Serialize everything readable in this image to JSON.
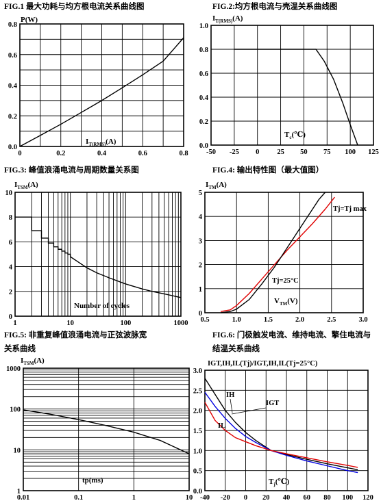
{
  "chart_data": [
    {
      "id": "fig1",
      "type": "line",
      "title": "FIG.1  最大功耗与均方根电流关系曲线图",
      "ylabel": "P(W)",
      "xlabel_main": "I",
      "xlabel_sub": "T(RMS)",
      "xlabel_tail": "(A)",
      "xlim": [
        0,
        0.8
      ],
      "ylim": [
        0,
        0.8
      ],
      "xticks": [
        0,
        0.2,
        0.4,
        0.6,
        0.8
      ],
      "xtick_labels": [
        "0",
        "0.2",
        "0.4",
        "0.6",
        "0.8"
      ],
      "yticks": [
        0,
        0.2,
        0.4,
        0.6,
        0.8
      ],
      "ytick_labels": [
        "0.0",
        "0.2",
        "0.4",
        "0.6",
        "0.8"
      ],
      "xgrid": [
        0.1,
        0.2,
        0.3,
        0.4,
        0.5,
        0.6,
        0.7
      ],
      "ygrid": [
        0.1,
        0.2,
        0.3,
        0.4,
        0.5,
        0.6,
        0.7
      ],
      "series": [
        {
          "color": "#000000",
          "x": [
            0,
            0.1,
            0.2,
            0.3,
            0.4,
            0.5,
            0.6,
            0.7,
            0.8
          ],
          "y": [
            0,
            0.072,
            0.145,
            0.222,
            0.3,
            0.383,
            0.468,
            0.557,
            0.71
          ]
        }
      ]
    },
    {
      "id": "fig2",
      "type": "line",
      "title": "FIG.2:均方根电流与壳温关系曲线图",
      "ylabel_main": "I",
      "ylabel_sub": "T(RMS)",
      "ylabel_tail": "(A)",
      "xlabel_main": "T",
      "xlabel_sub": "c",
      "xlabel_tail": "(℃)",
      "xlim": [
        -50,
        125
      ],
      "ylim": [
        0,
        1.0
      ],
      "xticks": [
        -50,
        -25,
        0,
        25,
        50,
        75,
        100,
        125
      ],
      "xtick_labels": [
        "-50",
        "-25",
        "0",
        "25",
        "50",
        "75",
        "100",
        "125"
      ],
      "yticks": [
        0,
        0.2,
        0.4,
        0.6,
        0.8,
        1.0
      ],
      "ytick_labels": [
        "0.0",
        "0.2",
        "0.4",
        "0.6",
        "0.8",
        "1.0"
      ],
      "xgrid": [
        -25,
        0,
        25,
        50,
        75,
        100
      ],
      "ygrid": [
        0.2,
        0.4,
        0.6,
        0.8
      ],
      "series": [
        {
          "color": "#000000",
          "x": [
            -25,
            63,
            72,
            82,
            92,
            100,
            108
          ],
          "y": [
            0.8,
            0.8,
            0.7,
            0.55,
            0.35,
            0.17,
            0
          ]
        }
      ]
    },
    {
      "id": "fig3",
      "type": "line",
      "title": "FIG.3:  峰值浪涌电流与周期数量关系图",
      "ylabel_main": "I",
      "ylabel_sub": "TSM",
      "ylabel_tail": "(A)",
      "xlabel": "Number of cycles",
      "xscale": "log",
      "xlim": [
        1,
        1000
      ],
      "ylim": [
        0,
        10
      ],
      "xticks": [
        1,
        10,
        100,
        1000
      ],
      "xtick_labels": [
        "1",
        "10",
        "100",
        "1000"
      ],
      "yticks": [
        0,
        2,
        4,
        6,
        8,
        10
      ],
      "ytick_labels": [
        "0",
        "2",
        "4",
        "6",
        "8",
        "10"
      ],
      "xgrid": [
        2,
        3,
        4,
        5,
        6,
        7,
        8,
        9,
        10,
        20,
        30,
        40,
        50,
        60,
        70,
        80,
        90,
        100,
        200,
        300,
        400,
        500,
        600,
        700,
        800,
        900
      ],
      "ygrid": [
        2,
        4,
        6,
        8
      ],
      "series": [
        {
          "color": "#000000",
          "step": true,
          "x": [
            1,
            2,
            3,
            4,
            5,
            6,
            7,
            8,
            9,
            10
          ],
          "y": [
            8.0,
            6.9,
            6.3,
            5.9,
            5.6,
            5.4,
            5.25,
            5.1,
            5.0,
            4.8
          ]
        },
        {
          "color": "#000000",
          "step": false,
          "x": [
            10,
            20,
            30,
            50,
            100,
            200,
            300,
            500,
            1000
          ],
          "y": [
            4.8,
            3.9,
            3.5,
            3.1,
            2.6,
            2.2,
            2.0,
            1.8,
            1.5
          ]
        }
      ]
    },
    {
      "id": "fig4",
      "type": "line",
      "title": "FIG.4:  输出特性图（最大值图）",
      "ylabel_main": "I",
      "ylabel_sub": "TM",
      "ylabel_tail": "(A)",
      "xlabel_main": "V",
      "xlabel_sub": "TM",
      "xlabel_tail": "(V)",
      "xlim": [
        0.5,
        3.0
      ],
      "ylim": [
        0,
        5
      ],
      "xticks": [
        0.5,
        1.0,
        1.5,
        2.0,
        2.5,
        3.0
      ],
      "xtick_labels": [
        "0.5",
        "1.0",
        "1.5",
        "2.0",
        "2.5",
        "3.0"
      ],
      "yticks": [
        0,
        1,
        2,
        3,
        4,
        5
      ],
      "ytick_labels": [
        "0",
        "1",
        "2",
        "3",
        "4",
        "5"
      ],
      "xgrid": [
        1.0,
        1.5,
        2.0,
        2.5
      ],
      "ygrid": [
        1,
        2,
        3,
        4
      ],
      "annotations": [
        "Tj=Tj max",
        "Tj=25°C"
      ],
      "series": [
        {
          "name": "Tj=Tj max",
          "color": "#e00000",
          "x": [
            0.75,
            0.9,
            1.0,
            1.2,
            1.4,
            1.6,
            1.8,
            2.0,
            2.2,
            2.4,
            2.55
          ],
          "y": [
            0.05,
            0.12,
            0.3,
            0.8,
            1.4,
            2.0,
            2.6,
            3.15,
            3.7,
            4.3,
            4.8
          ]
        },
        {
          "name": "Tj=25°C",
          "color": "#000000",
          "x": [
            0.75,
            0.9,
            1.0,
            1.2,
            1.4,
            1.6,
            1.8,
            2.0,
            2.2,
            2.3,
            2.4
          ],
          "y": [
            0.0,
            0.05,
            0.15,
            0.55,
            1.2,
            1.9,
            2.7,
            3.5,
            4.3,
            4.7,
            5.0
          ]
        }
      ]
    },
    {
      "id": "fig5",
      "type": "line",
      "title": "FIG.5:  非重复峰值浪涌电流与正弦波脉宽",
      "title_line2": "关系曲线",
      "ylabel_main": "I",
      "ylabel_sub": "TSM",
      "ylabel_tail": "(A)",
      "xlabel": "tp(ms)",
      "xscale": "log",
      "yscale": "log",
      "xlim": [
        0.01,
        10
      ],
      "ylim": [
        1,
        1000
      ],
      "xticks": [
        0.01,
        0.1,
        1,
        10
      ],
      "xtick_labels": [
        "0.01",
        "0.1",
        "1",
        "10"
      ],
      "yticks": [
        1,
        10,
        100,
        1000
      ],
      "ytick_labels": [
        "1",
        "10",
        "100",
        "1000"
      ],
      "xgrid": [
        0.1,
        1
      ],
      "ygrid": [
        2,
        3,
        4,
        5,
        6,
        7,
        8,
        9,
        10,
        20,
        30,
        40,
        50,
        60,
        70,
        80,
        90,
        100,
        200,
        300,
        400,
        500,
        600,
        700,
        800,
        900
      ],
      "series": [
        {
          "color": "#000000",
          "x": [
            0.01,
            0.03,
            0.1,
            0.3,
            1,
            3,
            10
          ],
          "y": [
            95,
            75,
            55,
            40,
            27,
            17,
            8
          ]
        }
      ]
    },
    {
      "id": "fig6",
      "type": "line",
      "title": "FIG.6:  门极触发电流、维持电流、擎住电流与",
      "title_line2": "结温关系曲线",
      "ylabel": "IGT,IH,IL(Tj)/IGT,IH,IL(Tj=25°C)",
      "xlabel_main": "T",
      "xlabel_sub": "j",
      "xlabel_tail": "(℃)",
      "xlim": [
        -40,
        120
      ],
      "ylim": [
        0,
        3.0
      ],
      "xticks": [
        -40,
        -20,
        0,
        20,
        40,
        60,
        80,
        100,
        120
      ],
      "xtick_labels": [
        "-40",
        "-20",
        "0",
        "20",
        "40",
        "60",
        "80",
        "100",
        "120"
      ],
      "yticks": [
        0,
        0.5,
        1.0,
        1.5,
        2.0,
        2.5,
        3.0
      ],
      "ytick_labels": [
        "0.0",
        "0.5",
        "1.0",
        "1.5",
        "2.0",
        "2.5",
        "3.0"
      ],
      "xgrid": [
        -20,
        0,
        20,
        40,
        60,
        80,
        100
      ],
      "ygrid": [
        0.5,
        1.0,
        1.5,
        2.0,
        2.5
      ],
      "annotations": [
        "IH",
        "IGT",
        "IL"
      ],
      "series": [
        {
          "name": "IH",
          "color": "#000000",
          "x": [
            -40,
            -30,
            -20,
            -10,
            0,
            10,
            25,
            40,
            60,
            80,
            100,
            110
          ],
          "y": [
            2.8,
            2.4,
            2.0,
            1.7,
            1.45,
            1.25,
            1.0,
            0.9,
            0.78,
            0.67,
            0.57,
            0.52
          ]
        },
        {
          "name": "IGT",
          "color": "#0000e0",
          "x": [
            -40,
            -30,
            -20,
            -10,
            0,
            10,
            25,
            40,
            60,
            80,
            100,
            110
          ],
          "y": [
            2.45,
            2.1,
            1.8,
            1.55,
            1.35,
            1.2,
            1.0,
            0.88,
            0.74,
            0.62,
            0.5,
            0.45
          ]
        },
        {
          "name": "IL",
          "color": "#e00000",
          "x": [
            -40,
            -30,
            -20,
            -10,
            0,
            10,
            25,
            40,
            60,
            80,
            100,
            110
          ],
          "y": [
            2.2,
            1.75,
            1.5,
            1.32,
            1.22,
            1.12,
            1.0,
            0.92,
            0.82,
            0.72,
            0.63,
            0.58
          ]
        }
      ]
    }
  ]
}
